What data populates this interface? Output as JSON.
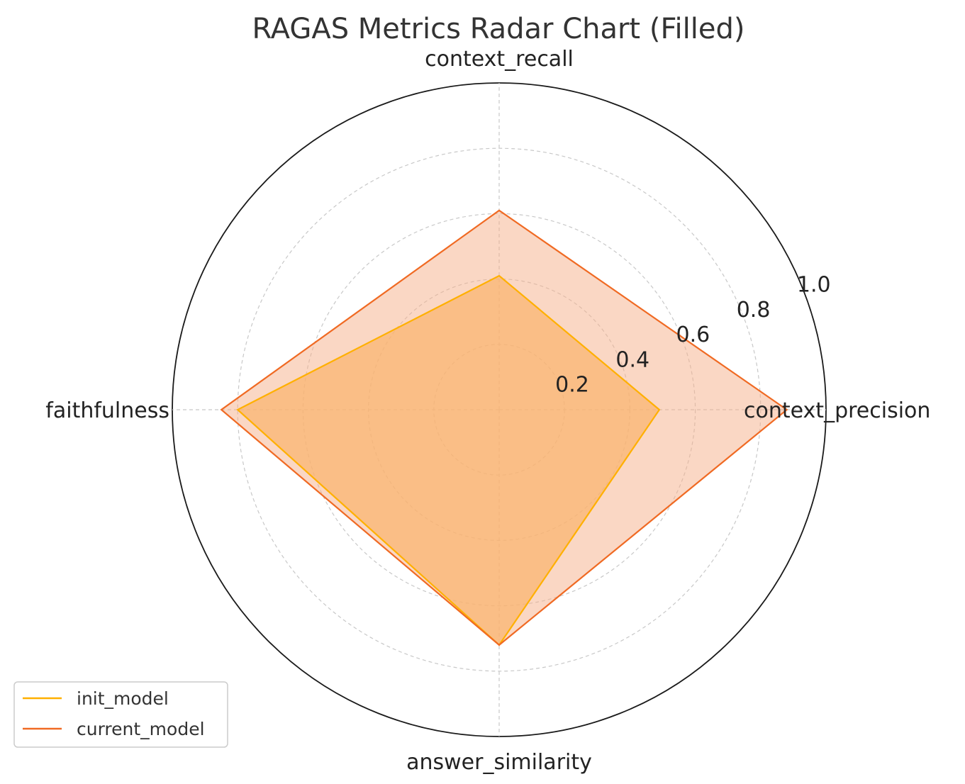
{
  "chart_data": {
    "type": "radar",
    "title": "RAGAS Metrics Radar Chart (Filled)",
    "axes": [
      "context_precision",
      "context_recall",
      "faithfulness",
      "answer_similarity"
    ],
    "rlim": [
      0,
      1.0
    ],
    "rticks": [
      0.2,
      0.4,
      0.6,
      0.8,
      1.0
    ],
    "rtick_labels": [
      "0.2",
      "0.4",
      "0.6",
      "0.8",
      "1.0"
    ],
    "grid": true,
    "legend_position": "bottom-left",
    "series": [
      {
        "name": "init_model",
        "values": [
          0.49,
          0.41,
          0.8,
          0.72
        ],
        "color": "#FFB000",
        "fill": "#FFB74D"
      },
      {
        "name": "current_model",
        "values": [
          0.88,
          0.61,
          0.85,
          0.72
        ],
        "color": "#F06A23",
        "fill": "#F6B08A"
      }
    ]
  }
}
